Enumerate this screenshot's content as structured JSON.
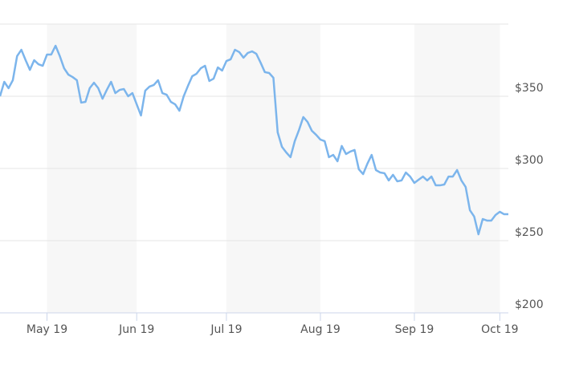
{
  "chart_data": {
    "type": "line",
    "series": [
      {
        "color": "#7cb5ec",
        "values": [
          350,
          360,
          355.6,
          361.1,
          377.8,
          382.2,
          375,
          368.3,
          375,
          372.2,
          371.1,
          378.9,
          378.9,
          385,
          377.8,
          369.4,
          365,
          363.3,
          361.1,
          345.6,
          346.1,
          355.6,
          359.4,
          355.6,
          348.3,
          354.4,
          360,
          352.2,
          354.4,
          355,
          350,
          352.2,
          344.4,
          336.7,
          353.9,
          356.7,
          357.8,
          361.1,
          352.2,
          351.1,
          346.1,
          344.4,
          340,
          350,
          357.2,
          363.9,
          365.6,
          369.4,
          371.1,
          360.6,
          362.2,
          370,
          367.8,
          374.4,
          375.6,
          382.2,
          380.6,
          376.7,
          380,
          381.1,
          379.4,
          373.3,
          366.7,
          366.1,
          362.8,
          325,
          315,
          311.1,
          307.8,
          318.9,
          326.7,
          335.6,
          332.2,
          326.1,
          323.3,
          320,
          318.9,
          307.8,
          309.4,
          305,
          315.6,
          310,
          311.7,
          312.8,
          299.4,
          296.1,
          303.3,
          309.4,
          298.9,
          297.2,
          296.7,
          291.7,
          295.6,
          291.1,
          291.7,
          297.2,
          294.4,
          290,
          292.2,
          294.4,
          291.7,
          294.4,
          288.3,
          288.3,
          288.9,
          294.4,
          294.4,
          298.9,
          291.7,
          287.2,
          271.1,
          266.7,
          254.4,
          265,
          263.9,
          263.9,
          267.8,
          270,
          268.3,
          268.3
        ]
      }
    ],
    "xlim": [
      0,
      119
    ],
    "xticks": [
      {
        "value": 11,
        "label": "May 19"
      },
      {
        "value": 32,
        "label": "Jun 19"
      },
      {
        "value": 53,
        "label": "Jul 19"
      },
      {
        "value": 75,
        "label": "Aug 19"
      },
      {
        "value": 97,
        "label": "Sep 19"
      },
      {
        "value": 117,
        "label": "Oct 19"
      }
    ],
    "ylim": [
      200,
      400
    ],
    "yticks": [
      {
        "value": 200,
        "label": "$200"
      },
      {
        "value": 250,
        "label": "$250"
      },
      {
        "value": 300,
        "label": "$300"
      },
      {
        "value": 350,
        "label": "$350"
      }
    ],
    "grid": true
  }
}
